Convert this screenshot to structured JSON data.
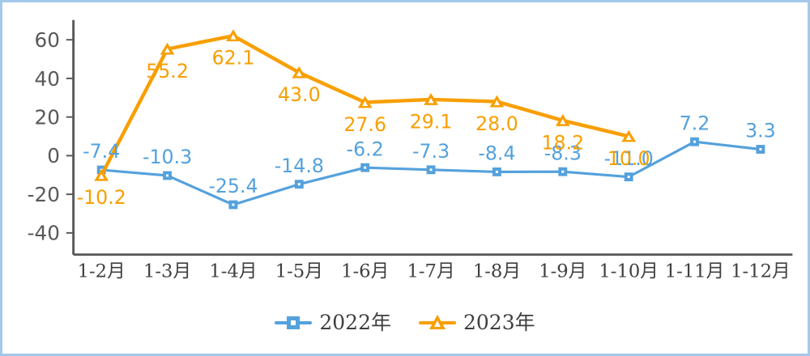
{
  "panel": {
    "background": "#ffffff",
    "border_color": "#a4c8ea"
  },
  "chart_data": {
    "type": "line",
    "categories": [
      "1-2月",
      "1-3月",
      "1-4月",
      "1-5月",
      "1-6月",
      "1-7月",
      "1-8月",
      "1-9月",
      "1-10月",
      "1-11月",
      "1-12月"
    ],
    "series": [
      {
        "name": "2022年",
        "marker": "square",
        "color": "#54a1dc",
        "values": [
          -7.4,
          -10.3,
          -25.4,
          -14.8,
          -6.2,
          -7.3,
          -8.4,
          -8.3,
          -11.0,
          7.2,
          3.3
        ],
        "labels": [
          "-7.4",
          "-10.3",
          "-25.4",
          "-14.8",
          "-6.2",
          "-7.3",
          "-8.4",
          "-8.3",
          "-11.0",
          "7.2",
          "3.3"
        ],
        "label_position": "above"
      },
      {
        "name": "2023年",
        "marker": "triangle",
        "color": "#f89f00",
        "values": [
          -10.2,
          55.2,
          62.1,
          43.0,
          27.6,
          29.1,
          28.0,
          18.2,
          10.0
        ],
        "labels": [
          "-10.2",
          "55.2",
          "62.1",
          "43.0",
          "27.6",
          "29.1",
          "28.0",
          "18.2",
          "10.0"
        ],
        "label_position": "below"
      }
    ],
    "y_ticks": [
      60,
      40,
      20,
      0,
      -20,
      -40
    ],
    "y_tick_labels": [
      "60",
      "40",
      "20",
      "0",
      "-20",
      "-40"
    ],
    "ylim": [
      -52,
      68
    ],
    "grid": false,
    "legend_position": "bottom",
    "axis_color": "#595959",
    "tick_label_color": "#595959",
    "category_label_color": "#3f3f3f"
  },
  "legend": {
    "items": [
      {
        "label": "2022年"
      },
      {
        "label": "2023年"
      }
    ]
  }
}
